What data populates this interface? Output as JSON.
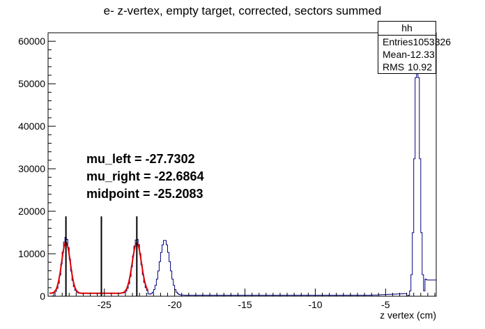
{
  "title": "e- z-vertex, empty target, corrected, sectors summed",
  "stats_box": {
    "name": "hh",
    "rows": [
      {
        "label": "Entries",
        "value": "1053326"
      },
      {
        "label": "Mean",
        "value": "-12.33"
      },
      {
        "label": "RMS",
        "value": "10.92"
      }
    ]
  },
  "annotations": {
    "mu_left": "mu_left = -27.7302",
    "mu_right": "mu_right = -22.6864",
    "midpoint": "midpoint = -25.2083"
  },
  "chart_data": {
    "type": "histogram",
    "xlabel": "z vertex (cm)",
    "ylabel": "",
    "xlim": [
      -29,
      -1.4
    ],
    "ylim": [
      0,
      62000
    ],
    "x_ticks": [
      -25,
      -20,
      -15,
      -10,
      -5
    ],
    "y_ticks": [
      0,
      10000,
      20000,
      30000,
      40000,
      50000,
      60000
    ],
    "y_tick_labels": [
      "0",
      "10000",
      "20000",
      "30000",
      "40000",
      "50000",
      "60000"
    ],
    "line_color": "#000080",
    "fit_color": "#e00000",
    "peaks": [
      {
        "center": -27.73,
        "height": 13200,
        "sigma": 0.28
      },
      {
        "center": -22.69,
        "height": 12800,
        "sigma": 0.3
      },
      {
        "center": -20.7,
        "height": 13000,
        "sigma": 0.35
      },
      {
        "center": -2.75,
        "height": 60000,
        "sigma": 0.18
      }
    ],
    "baseline": 700,
    "fit_range": [
      -28.9,
      -21.9
    ],
    "vertical_lines": [
      -27.73,
      -25.21,
      -22.69
    ],
    "vertical_line_top": 18800
  }
}
